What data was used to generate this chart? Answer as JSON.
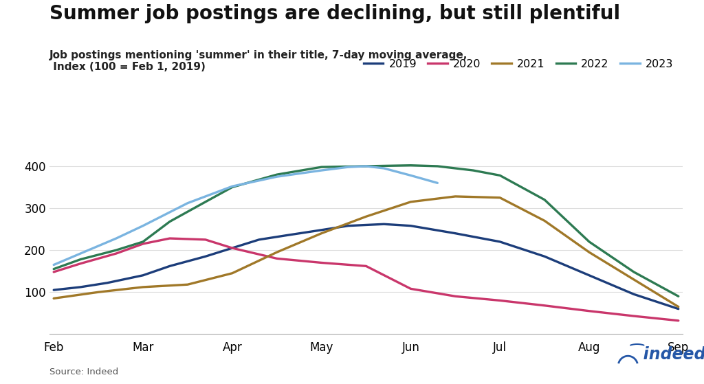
{
  "title": "Summer job postings are declining, but still plentiful",
  "subtitle": "Job postings mentioning 'summer' in their title, 7-day moving average,\n Index (100 = Feb 1, 2019)",
  "source": "Source: Indeed",
  "x_labels": [
    "Feb",
    "Mar",
    "Apr",
    "May",
    "Jun",
    "Jul",
    "Aug",
    "Sep"
  ],
  "ylim": [
    0,
    430
  ],
  "yticks": [
    100,
    200,
    300,
    400
  ],
  "colors": {
    "2019": "#1c3d7a",
    "2020": "#c9366b",
    "2021": "#a07828",
    "2022": "#2d7a52",
    "2023": "#7ab4e0"
  },
  "series": {
    "2019": {
      "x": [
        0,
        0.3,
        0.6,
        1.0,
        1.3,
        1.7,
        2.0,
        2.3,
        2.6,
        3.0,
        3.3,
        3.7,
        4.0,
        4.5,
        5.0,
        5.5,
        6.0,
        6.5,
        7.0
      ],
      "y": [
        105,
        112,
        122,
        140,
        162,
        185,
        205,
        225,
        235,
        248,
        258,
        262,
        258,
        240,
        220,
        185,
        140,
        95,
        60
      ]
    },
    "2020": {
      "x": [
        0,
        0.3,
        0.7,
        1.0,
        1.3,
        1.7,
        2.0,
        2.5,
        3.0,
        3.5,
        4.0,
        4.5,
        5.0,
        5.5,
        6.0,
        6.5,
        7.0
      ],
      "y": [
        148,
        168,
        192,
        215,
        228,
        225,
        205,
        180,
        170,
        162,
        108,
        90,
        80,
        68,
        55,
        43,
        32
      ]
    },
    "2021": {
      "x": [
        0,
        0.5,
        1.0,
        1.5,
        2.0,
        2.5,
        3.0,
        3.5,
        4.0,
        4.5,
        5.0,
        5.5,
        6.0,
        6.5,
        7.0
      ],
      "y": [
        85,
        100,
        112,
        118,
        145,
        195,
        240,
        280,
        315,
        328,
        325,
        270,
        195,
        130,
        65
      ]
    },
    "2022": {
      "x": [
        0,
        0.3,
        0.7,
        1.0,
        1.3,
        1.7,
        2.0,
        2.5,
        3.0,
        3.5,
        4.0,
        4.3,
        4.7,
        5.0,
        5.5,
        6.0,
        6.5,
        7.0
      ],
      "y": [
        155,
        178,
        200,
        220,
        268,
        315,
        350,
        380,
        398,
        400,
        402,
        400,
        390,
        378,
        320,
        220,
        148,
        90
      ]
    },
    "2023": {
      "x": [
        0,
        0.3,
        0.7,
        1.0,
        1.5,
        2.0,
        2.5,
        3.0,
        3.3,
        3.5,
        3.7,
        4.0,
        4.3
      ],
      "y": [
        165,
        192,
        228,
        258,
        312,
        352,
        375,
        390,
        398,
        400,
        395,
        378,
        360
      ]
    }
  },
  "background_color": "#ffffff",
  "legend_order": [
    "2019",
    "2020",
    "2021",
    "2022",
    "2023"
  ]
}
